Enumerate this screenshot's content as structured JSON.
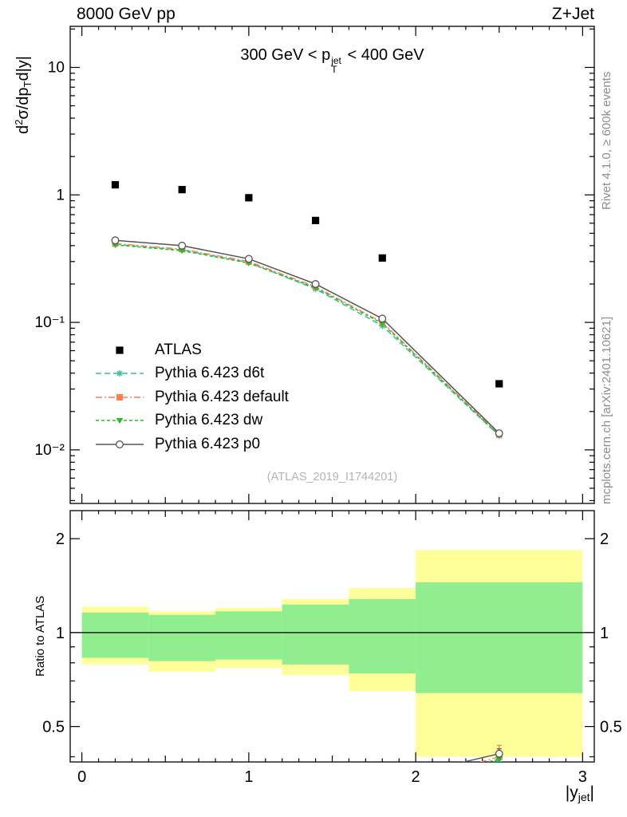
{
  "header": {
    "left_title": "8000 GeV pp",
    "right_title": "Z+Jet"
  },
  "cut_title": {
    "pre": "300 GeV < p",
    "sup": "jet",
    "sub": "T",
    "post": " < 400 GeV"
  },
  "axis_labels": {
    "main_y": {
      "pre": "d",
      "sup": "2",
      "mid": "σ/dp",
      "sub": "T",
      "post": "d|y|"
    },
    "ratio_y": "Ratio to ATLAS",
    "x": {
      "pre": "|y",
      "sub": "jet",
      "post": "|"
    }
  },
  "watermark": "(ATLAS_2019_I1744201)",
  "side_notes": {
    "top": "Rivet 4.1.0, ≥ 600k events",
    "bottom": "mcplots.cern.ch [arXiv:2401.10621]"
  },
  "legend": [
    {
      "label": "ATLAS",
      "series": "ATLAS"
    },
    {
      "label": "Pythia 6.423 d6t",
      "series": "Pythia 6.423 d6t"
    },
    {
      "label": "Pythia 6.423 default",
      "series": "Pythia 6.423 default"
    },
    {
      "label": "Pythia 6.423 dw",
      "series": "Pythia 6.423 dw"
    },
    {
      "label": "Pythia 6.423 p0",
      "series": "Pythia 6.423 p0"
    }
  ],
  "chart_data": {
    "type": "line",
    "title": "300 GeV < pT(jet) < 400 GeV",
    "xlabel": "|y_jet|",
    "ylabel": "d2σ/dpT d|y|",
    "x": [
      0.2,
      0.6,
      1.0,
      1.4,
      1.8,
      2.5
    ],
    "xlim": [
      -0.07,
      3.07
    ],
    "x_ticks": [
      0,
      1,
      2,
      3
    ],
    "main": {
      "yscale": "log",
      "ylim": [
        0.0038,
        21
      ],
      "y_ticks": [
        {
          "v": 10,
          "label": "10"
        },
        {
          "v": 1,
          "label": "1"
        },
        {
          "v": 0.1,
          "label": "10⁻¹"
        },
        {
          "v": 0.01,
          "label": "10⁻²"
        }
      ]
    },
    "series": [
      {
        "name": "ATLAS",
        "color": "#000000",
        "marker": "square",
        "line": "none",
        "values": [
          1.2,
          1.1,
          0.95,
          0.63,
          0.32,
          0.033
        ]
      },
      {
        "name": "Pythia 6.423 d6t",
        "color": "#33bf99",
        "marker": "star",
        "line": "dash",
        "ratio_err": 0.015,
        "values": [
          0.41,
          0.37,
          0.295,
          0.183,
          0.094,
          0.0129
        ]
      },
      {
        "name": "Pythia 6.423 default",
        "color": "#ff7f50",
        "marker": "square",
        "line": "dashdot",
        "ratio_err": 0.035,
        "values": [
          0.415,
          0.375,
          0.3,
          0.19,
          0.1,
          0.0132
        ]
      },
      {
        "name": "Pythia 6.423 dw",
        "color": "#2eb82e",
        "marker": "triangle-down",
        "line": "dash2",
        "ratio_err": 0.015,
        "values": [
          0.405,
          0.365,
          0.292,
          0.187,
          0.098,
          0.013
        ]
      },
      {
        "name": "Pythia 6.423 p0",
        "color": "#555555",
        "marker": "circle-open",
        "line": "solid",
        "ratio_err": 0.015,
        "values": [
          0.44,
          0.4,
          0.315,
          0.2,
          0.107,
          0.0135
        ]
      }
    ],
    "ratio": {
      "yscale": "log",
      "ylim": [
        0.385,
        2.46
      ],
      "y_ticks": [
        {
          "v": 2,
          "label": "2"
        },
        {
          "v": 1,
          "label": "1"
        },
        {
          "v": 0.5,
          "label": "0.5"
        }
      ],
      "reference_line": 1,
      "band_edges": [
        0,
        0.4,
        0.8,
        1.2,
        1.6,
        2.0,
        3.0
      ],
      "yellow_band": [
        [
          0.79,
          1.21
        ],
        [
          0.75,
          1.17
        ],
        [
          0.77,
          1.2
        ],
        [
          0.73,
          1.28
        ],
        [
          0.65,
          1.39
        ],
        [
          0.4,
          1.84
        ]
      ],
      "green_band": [
        [
          0.83,
          1.16
        ],
        [
          0.81,
          1.14
        ],
        [
          0.82,
          1.17
        ],
        [
          0.79,
          1.23
        ],
        [
          0.74,
          1.28
        ],
        [
          0.64,
          1.45
        ]
      ],
      "band_colors": {
        "yellow": "#ffff99",
        "green": "#90ee90"
      }
    }
  }
}
